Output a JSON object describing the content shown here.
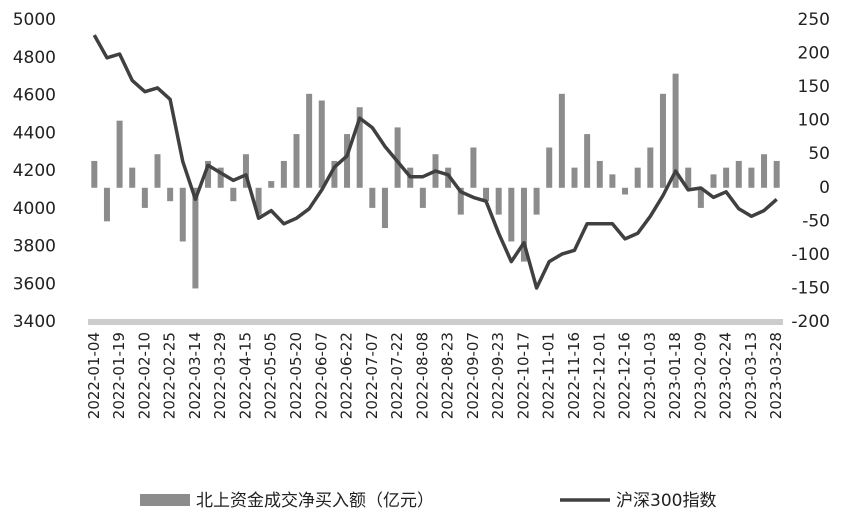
{
  "chart_data": {
    "type": "bar-line",
    "categories": [
      "2022-01-04",
      null,
      "2022-01-19",
      null,
      "2022-02-10",
      null,
      "2022-02-25",
      null,
      "2022-03-14",
      null,
      "2022-03-29",
      null,
      "2022-04-15",
      null,
      "2022-05-05",
      null,
      "2022-05-20",
      null,
      "2022-06-07",
      null,
      "2022-06-22",
      null,
      "2022-07-07",
      null,
      "2022-07-22",
      null,
      "2022-08-08",
      null,
      "2022-08-23",
      null,
      "2022-09-07",
      null,
      "2022-09-23",
      null,
      "2022-10-17",
      null,
      "2022-11-01",
      null,
      "2022-11-16",
      null,
      "2022-12-01",
      null,
      "2022-12-16",
      null,
      "2023-01-03",
      null,
      "2023-01-18",
      null,
      "2023-02-09",
      null,
      "2023-02-24",
      null,
      "2023-03-13",
      null,
      "2023-03-28"
    ],
    "series": [
      {
        "name": "北上资金成交净买入额（亿元）",
        "type": "bar",
        "axis": "y2",
        "color": "#8c8c8c",
        "values": [
          40,
          -50,
          100,
          30,
          -30,
          50,
          -20,
          -80,
          -150,
          40,
          30,
          -20,
          50,
          -40,
          10,
          40,
          80,
          140,
          130,
          40,
          80,
          120,
          -30,
          -60,
          90,
          30,
          -30,
          50,
          30,
          -40,
          60,
          -20,
          -40,
          -80,
          -110,
          -40,
          60,
          140,
          30,
          80,
          40,
          20,
          -10,
          30,
          60,
          140,
          170,
          30,
          -30,
          20,
          30,
          40,
          30,
          50,
          40
        ]
      },
      {
        "name": "沪深300指数",
        "type": "line",
        "axis": "y",
        "color": "#404040",
        "values": [
          4920,
          4800,
          4820,
          4680,
          4620,
          4640,
          4580,
          4250,
          4050,
          4230,
          4190,
          4150,
          4180,
          3950,
          3990,
          3920,
          3950,
          4000,
          4100,
          4220,
          4280,
          4480,
          4430,
          4330,
          4250,
          4170,
          4170,
          4200,
          4180,
          4090,
          4060,
          4040,
          3870,
          3720,
          3820,
          3580,
          3720,
          3760,
          3780,
          3920,
          3920,
          3920,
          3840,
          3870,
          3960,
          4070,
          4200,
          4100,
          4110,
          4060,
          4090,
          4000,
          3960,
          3990,
          4050
        ]
      }
    ],
    "ylim": [
      3400,
      5000
    ],
    "yticks": [
      3400,
      3600,
      3800,
      4000,
      4200,
      4400,
      4600,
      4800,
      5000
    ],
    "y2lim": [
      -200,
      250
    ],
    "y2ticks": [
      -200,
      -150,
      -100,
      -50,
      0,
      50,
      100,
      150,
      200,
      250
    ]
  }
}
